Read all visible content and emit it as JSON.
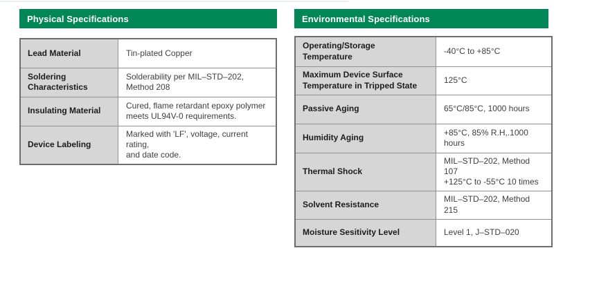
{
  "theme": {
    "header_green": "#008657",
    "header_text": "#ffffff",
    "label_cell_bg": "#d6d6d6",
    "value_cell_bg": "#ffffff",
    "border_outer": "#6d6d6d",
    "border_inner": "#909090"
  },
  "physical": {
    "title": "Physical Specifications",
    "rows": [
      {
        "label": "Lead Material",
        "value": "Tin-plated Copper"
      },
      {
        "label": "Soldering\nCharacteristics",
        "value": "Solderability per MIL–STD–202,\nMethod 208"
      },
      {
        "label": "Insulating Material",
        "value": "Cured, flame retardant epoxy polymer\nmeets UL94V-0 requirements."
      },
      {
        "label": "Device Labeling",
        "value": "Marked with 'LF', voltage, current rating,\nand date code."
      }
    ]
  },
  "environmental": {
    "title": "Environmental Specifications",
    "rows": [
      {
        "label": "Operating/Storage\nTemperature",
        "value": "-40°C to +85°C"
      },
      {
        "label": "Maximum Device Surface\nTemperature in Tripped State",
        "value": "125°C"
      },
      {
        "label": "Passive Aging",
        "value": "65°C/85°C, 1000 hours"
      },
      {
        "label": "Humidity Aging",
        "value": "+85°C, 85% R.H,.1000 hours"
      },
      {
        "label": "Thermal Shock",
        "value": "MIL–STD–202, Method 107\n+125°C to -55°C 10 times"
      },
      {
        "label": "Solvent Resistance",
        "value": "MIL–STD–202, Method 215"
      },
      {
        "label": "Moisture Sesitivity Level",
        "value": "Level 1, J–STD–020"
      }
    ]
  }
}
